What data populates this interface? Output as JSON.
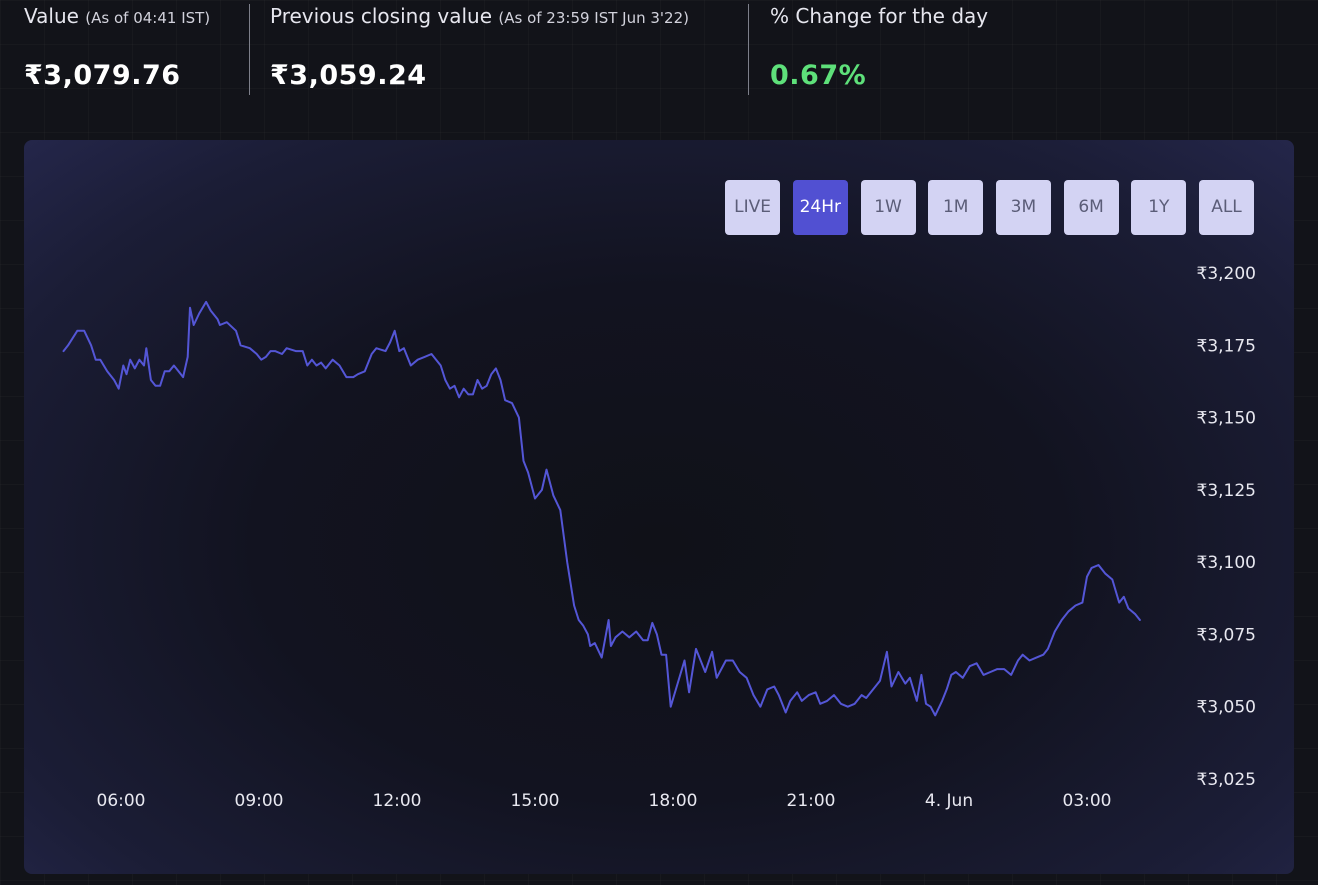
{
  "stats": {
    "value": {
      "label": "Value",
      "note": "(As of 04:41 IST)",
      "amount": "₹3,079.76"
    },
    "previous_close": {
      "label": "Previous closing value",
      "note": "(As of 23:59 IST Jun 3'22)",
      "amount": "₹3,059.24"
    },
    "change": {
      "label": "% Change for the day",
      "amount": "0.67%"
    }
  },
  "range_tabs": [
    {
      "label": "LIVE",
      "active": false
    },
    {
      "label": "24Hr",
      "active": true
    },
    {
      "label": "1W",
      "active": false
    },
    {
      "label": "1M",
      "active": false
    },
    {
      "label": "3M",
      "active": false
    },
    {
      "label": "6M",
      "active": false
    },
    {
      "label": "1Y",
      "active": false
    },
    {
      "label": "ALL",
      "active": false
    }
  ],
  "colors": {
    "line": "#5456d6",
    "positive": "#5ee07a",
    "active_tab": "#5150d2",
    "tab": "#d3d3f3"
  },
  "chart_data": {
    "type": "line",
    "x_unit": "hours from 06:00 Jun 3 (IST)",
    "x_ticks": [
      {
        "x": 0,
        "label": "06:00"
      },
      {
        "x": 3,
        "label": "09:00"
      },
      {
        "x": 6,
        "label": "12:00"
      },
      {
        "x": 9,
        "label": "15:00"
      },
      {
        "x": 12,
        "label": "18:00"
      },
      {
        "x": 15,
        "label": "21:00"
      },
      {
        "x": 18,
        "label": "4. Jun"
      },
      {
        "x": 21,
        "label": "03:00"
      }
    ],
    "y_ticks": [
      {
        "y": 3200,
        "label": "₹3,200"
      },
      {
        "y": 3175,
        "label": "₹3,175"
      },
      {
        "y": 3150,
        "label": "₹3,150"
      },
      {
        "y": 3125,
        "label": "₹3,125"
      },
      {
        "y": 3100,
        "label": "₹3,100"
      },
      {
        "y": 3075,
        "label": "₹3,075"
      },
      {
        "y": 3050,
        "label": "₹3,050"
      },
      {
        "y": 3025,
        "label": "₹3,025"
      }
    ],
    "xlim": [
      -1.25,
      22.7
    ],
    "ylim": [
      3025,
      3200
    ],
    "grid": true,
    "series": [
      {
        "values": [
          [
            -1.25,
            3173
          ],
          [
            -1.15,
            3175
          ],
          [
            -0.95,
            3180
          ],
          [
            -0.8,
            3180
          ],
          [
            -0.65,
            3175
          ],
          [
            -0.55,
            3170
          ],
          [
            -0.45,
            3170
          ],
          [
            -0.3,
            3166
          ],
          [
            -0.15,
            3163
          ],
          [
            -0.05,
            3160
          ],
          [
            0.05,
            3168
          ],
          [
            0.12,
            3165
          ],
          [
            0.2,
            3170
          ],
          [
            0.3,
            3167
          ],
          [
            0.4,
            3170
          ],
          [
            0.5,
            3168
          ],
          [
            0.55,
            3174
          ],
          [
            0.65,
            3163
          ],
          [
            0.75,
            3161
          ],
          [
            0.85,
            3161
          ],
          [
            0.95,
            3166
          ],
          [
            1.05,
            3166
          ],
          [
            1.15,
            3168
          ],
          [
            1.25,
            3166
          ],
          [
            1.35,
            3164
          ],
          [
            1.45,
            3171
          ],
          [
            1.5,
            3188
          ],
          [
            1.58,
            3182
          ],
          [
            1.7,
            3186
          ],
          [
            1.85,
            3190
          ],
          [
            1.95,
            3187
          ],
          [
            2.1,
            3184
          ],
          [
            2.15,
            3182
          ],
          [
            2.3,
            3183
          ],
          [
            2.5,
            3180
          ],
          [
            2.6,
            3175
          ],
          [
            2.8,
            3174
          ],
          [
            2.95,
            3172
          ],
          [
            3.05,
            3170
          ],
          [
            3.15,
            3171
          ],
          [
            3.25,
            3173
          ],
          [
            3.35,
            3173
          ],
          [
            3.5,
            3172
          ],
          [
            3.6,
            3174
          ],
          [
            3.8,
            3173
          ],
          [
            3.95,
            3173
          ],
          [
            4.05,
            3168
          ],
          [
            4.15,
            3170
          ],
          [
            4.25,
            3168
          ],
          [
            4.35,
            3169
          ],
          [
            4.45,
            3167
          ],
          [
            4.6,
            3170
          ],
          [
            4.75,
            3168
          ],
          [
            4.9,
            3164
          ],
          [
            5.05,
            3164
          ],
          [
            5.15,
            3165
          ],
          [
            5.3,
            3166
          ],
          [
            5.45,
            3172
          ],
          [
            5.55,
            3174
          ],
          [
            5.75,
            3173
          ],
          [
            5.85,
            3176
          ],
          [
            5.95,
            3180
          ],
          [
            6.05,
            3173
          ],
          [
            6.15,
            3174
          ],
          [
            6.3,
            3168
          ],
          [
            6.45,
            3170
          ],
          [
            6.6,
            3171
          ],
          [
            6.75,
            3172
          ],
          [
            6.85,
            3170
          ],
          [
            6.95,
            3168
          ],
          [
            7.05,
            3163
          ],
          [
            7.15,
            3160
          ],
          [
            7.25,
            3161
          ],
          [
            7.35,
            3157
          ],
          [
            7.45,
            3160
          ],
          [
            7.55,
            3158
          ],
          [
            7.65,
            3158
          ],
          [
            7.75,
            3163
          ],
          [
            7.85,
            3160
          ],
          [
            7.95,
            3161
          ],
          [
            8.05,
            3165
          ],
          [
            8.15,
            3167
          ],
          [
            8.25,
            3163
          ],
          [
            8.35,
            3156
          ],
          [
            8.5,
            3155
          ],
          [
            8.65,
            3150
          ],
          [
            8.75,
            3135
          ],
          [
            8.85,
            3131
          ],
          [
            9.0,
            3122
          ],
          [
            9.15,
            3125
          ],
          [
            9.25,
            3132
          ],
          [
            9.4,
            3123
          ],
          [
            9.55,
            3118
          ],
          [
            9.7,
            3100
          ],
          [
            9.85,
            3085
          ],
          [
            9.95,
            3080
          ],
          [
            10.05,
            3078
          ],
          [
            10.15,
            3075
          ],
          [
            10.2,
            3071
          ],
          [
            10.3,
            3072
          ],
          [
            10.45,
            3067
          ],
          [
            10.6,
            3080
          ],
          [
            10.65,
            3071
          ],
          [
            10.75,
            3074
          ],
          [
            10.9,
            3076
          ],
          [
            11.05,
            3074
          ],
          [
            11.2,
            3076
          ],
          [
            11.35,
            3073
          ],
          [
            11.45,
            3073
          ],
          [
            11.55,
            3079
          ],
          [
            11.65,
            3075
          ],
          [
            11.75,
            3068
          ],
          [
            11.85,
            3068
          ],
          [
            11.95,
            3050
          ],
          [
            12.1,
            3058
          ],
          [
            12.25,
            3066
          ],
          [
            12.35,
            3055
          ],
          [
            12.5,
            3070
          ],
          [
            12.7,
            3062
          ],
          [
            12.85,
            3069
          ],
          [
            12.95,
            3060
          ],
          [
            13.15,
            3066
          ],
          [
            13.3,
            3066
          ],
          [
            13.45,
            3062
          ],
          [
            13.6,
            3060
          ],
          [
            13.75,
            3054
          ],
          [
            13.9,
            3050
          ],
          [
            14.05,
            3056
          ],
          [
            14.2,
            3057
          ],
          [
            14.3,
            3054
          ],
          [
            14.45,
            3048
          ],
          [
            14.55,
            3052
          ],
          [
            14.7,
            3055
          ],
          [
            14.8,
            3052
          ],
          [
            14.95,
            3054
          ],
          [
            15.1,
            3055
          ],
          [
            15.2,
            3051
          ],
          [
            15.35,
            3052
          ],
          [
            15.5,
            3054
          ],
          [
            15.65,
            3051
          ],
          [
            15.8,
            3050
          ],
          [
            15.95,
            3051
          ],
          [
            16.1,
            3054
          ],
          [
            16.2,
            3053
          ],
          [
            16.35,
            3056
          ],
          [
            16.5,
            3059
          ],
          [
            16.65,
            3069
          ],
          [
            16.75,
            3057
          ],
          [
            16.9,
            3062
          ],
          [
            17.05,
            3058
          ],
          [
            17.15,
            3060
          ],
          [
            17.3,
            3052
          ],
          [
            17.4,
            3061
          ],
          [
            17.5,
            3051
          ],
          [
            17.6,
            3050
          ],
          [
            17.7,
            3047
          ],
          [
            17.85,
            3052
          ],
          [
            17.95,
            3056
          ],
          [
            18.05,
            3061
          ],
          [
            18.15,
            3062
          ],
          [
            18.3,
            3060
          ],
          [
            18.45,
            3064
          ],
          [
            18.6,
            3065
          ],
          [
            18.75,
            3061
          ],
          [
            18.9,
            3062
          ],
          [
            19.05,
            3063
          ],
          [
            19.2,
            3063
          ],
          [
            19.35,
            3061
          ],
          [
            19.5,
            3066
          ],
          [
            19.6,
            3068
          ],
          [
            19.75,
            3066
          ],
          [
            19.9,
            3067
          ],
          [
            20.05,
            3068
          ],
          [
            20.15,
            3070
          ],
          [
            20.3,
            3076
          ],
          [
            20.45,
            3080
          ],
          [
            20.6,
            3083
          ],
          [
            20.75,
            3085
          ],
          [
            20.9,
            3086
          ],
          [
            21.0,
            3095
          ],
          [
            21.1,
            3098
          ],
          [
            21.25,
            3099
          ],
          [
            21.4,
            3096
          ],
          [
            21.55,
            3094
          ],
          [
            21.7,
            3086
          ],
          [
            21.8,
            3088
          ],
          [
            21.9,
            3084
          ],
          [
            22.05,
            3082
          ],
          [
            22.15,
            3080
          ]
        ]
      }
    ]
  }
}
